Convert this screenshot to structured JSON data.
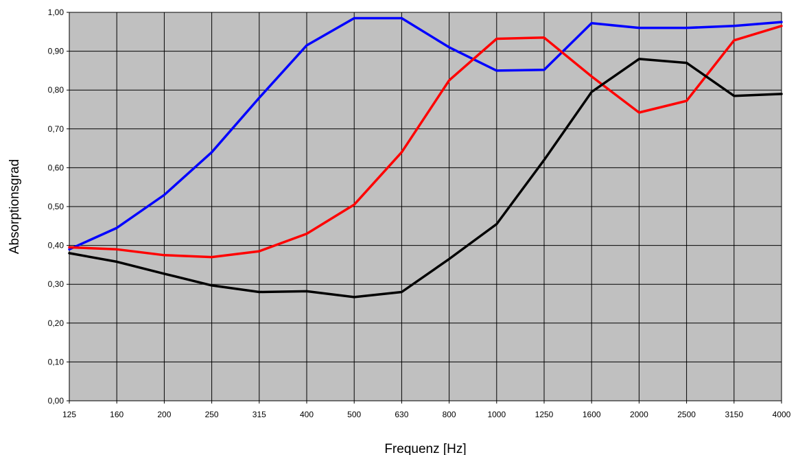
{
  "chart_data": {
    "type": "line",
    "title": "",
    "xlabel": "Frequenz [Hz]",
    "ylabel": "Absorptionsgrad",
    "categories": [
      "125",
      "160",
      "200",
      "250",
      "315",
      "400",
      "500",
      "630",
      "800",
      "1000",
      "1250",
      "1600",
      "2000",
      "2500",
      "3150",
      "4000"
    ],
    "yticks": [
      "0,00",
      "0,10",
      "0,20",
      "0,30",
      "0,40",
      "0,50",
      "0,60",
      "0,70",
      "0,80",
      "0,90",
      "1,00"
    ],
    "ylim": [
      0,
      1.0
    ],
    "grid": true,
    "legend": "none",
    "colors": {
      "plot_background": "#c0c0c0",
      "grid": "#000000"
    },
    "series": [
      {
        "color": "#0000ff",
        "values": [
          0.39,
          0.445,
          0.53,
          0.64,
          0.78,
          0.915,
          0.985,
          0.985,
          0.91,
          0.85,
          0.852,
          0.972,
          0.96,
          0.96,
          0.965,
          0.975
        ]
      },
      {
        "color": "#ff0000",
        "values": [
          0.395,
          0.39,
          0.375,
          0.37,
          0.385,
          0.43,
          0.505,
          0.64,
          0.825,
          0.932,
          0.935,
          0.835,
          0.742,
          0.772,
          0.928,
          0.965
        ]
      },
      {
        "color": "#000000",
        "values": [
          0.38,
          0.358,
          0.327,
          0.297,
          0.28,
          0.282,
          0.267,
          0.28,
          0.365,
          0.455,
          0.62,
          0.795,
          0.88,
          0.87,
          0.785,
          0.79
        ]
      }
    ]
  }
}
